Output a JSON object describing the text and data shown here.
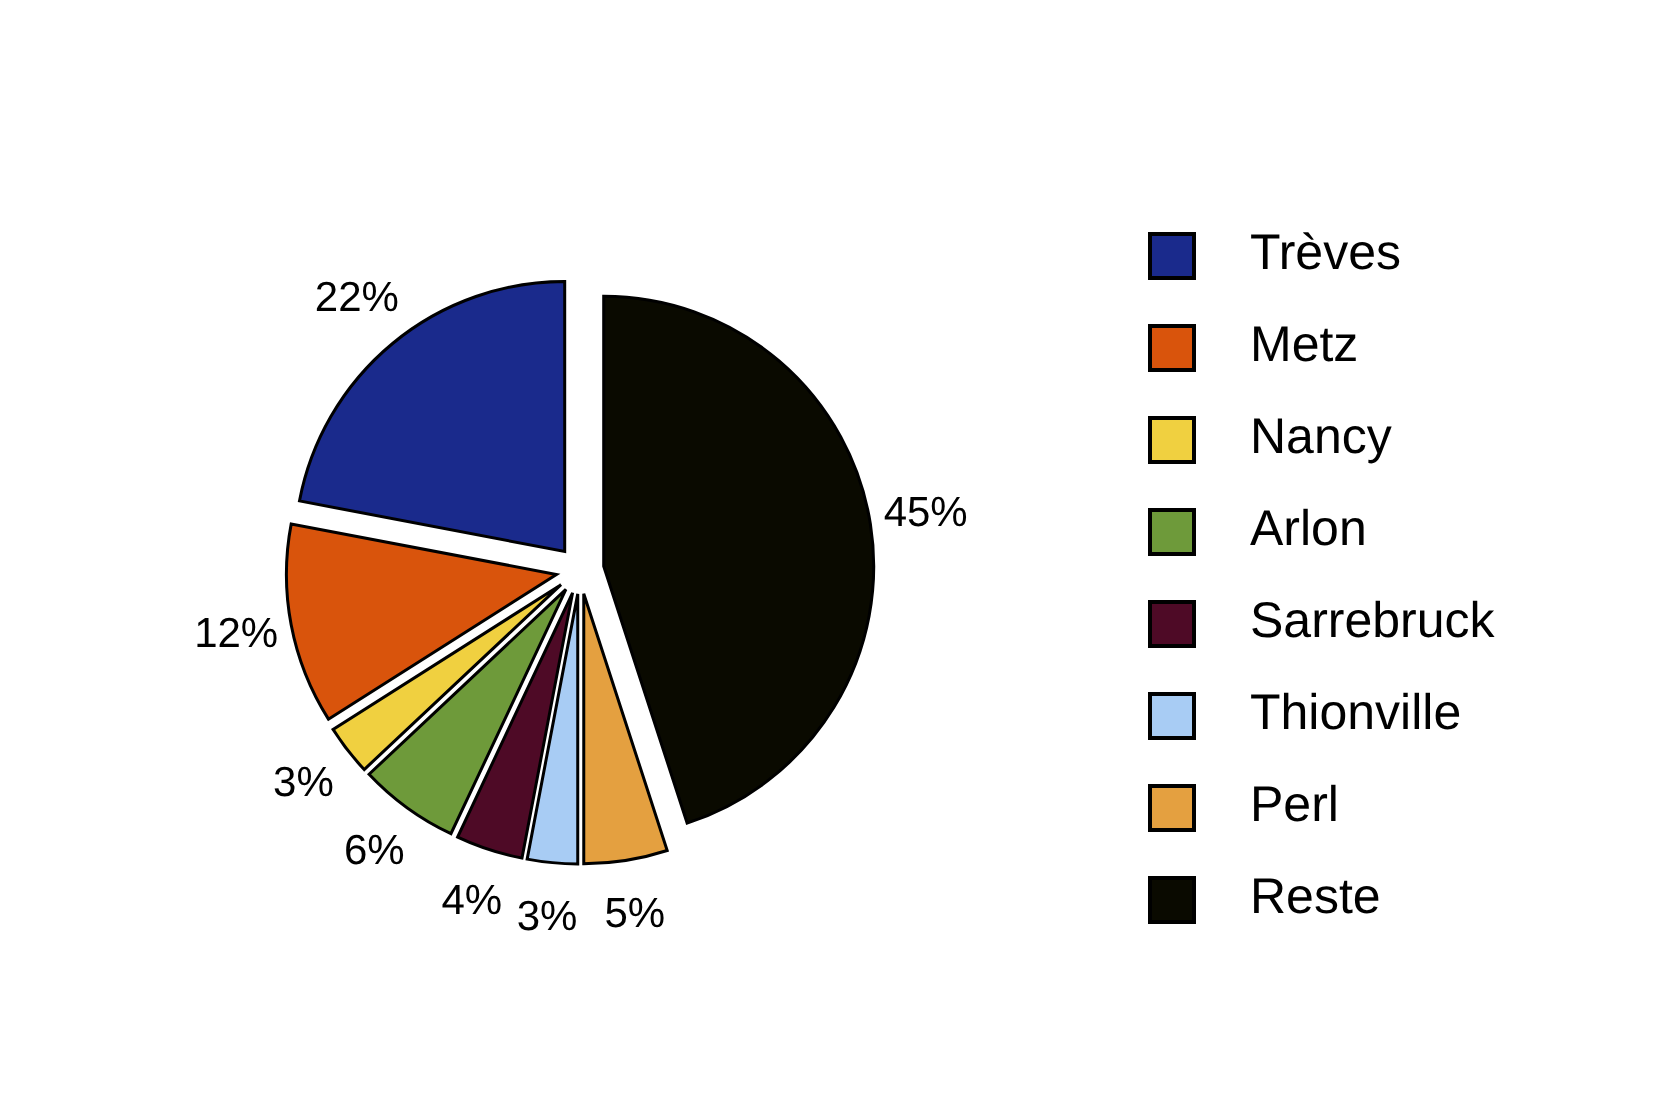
{
  "chart_data": {
    "type": "pie",
    "categories": [
      "Trèves",
      "Metz",
      "Nancy",
      "Arlon",
      "Sarrebruck",
      "Thionville",
      "Perl",
      "Reste"
    ],
    "values": [
      22,
      12,
      3,
      6,
      4,
      3,
      5,
      45
    ],
    "colors": [
      "#1a2a8c",
      "#d9540c",
      "#f0d040",
      "#6e9a3a",
      "#4e0a26",
      "#a8ccf4",
      "#e4a040",
      "#0a0a00"
    ],
    "value_labels": [
      "22%",
      "12%",
      "3%",
      "6%",
      "4%",
      "3%",
      "5%",
      "45%"
    ],
    "legend": "right"
  }
}
